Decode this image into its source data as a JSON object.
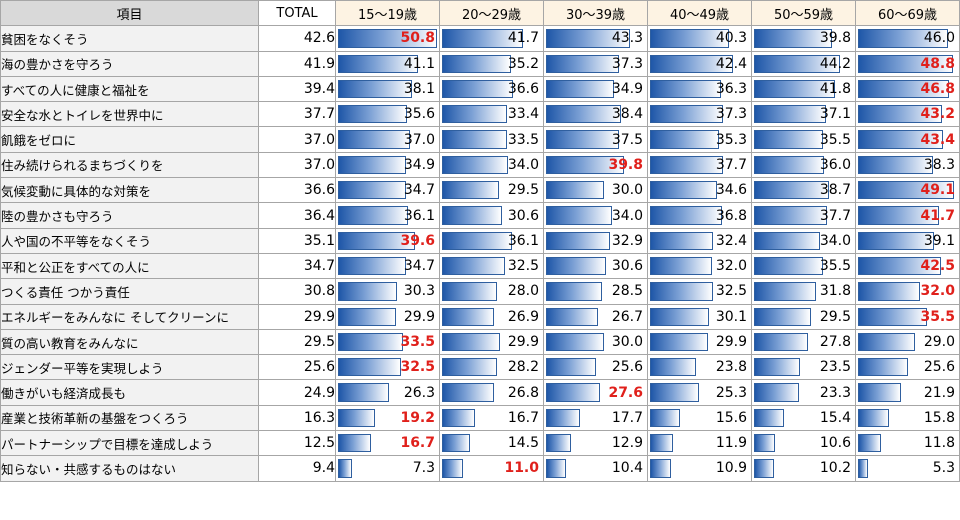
{
  "chart_data": {
    "type": "table",
    "columns": [
      "項目",
      "TOTAL",
      "15～19歳",
      "20～29歳",
      "30～39歳",
      "40～49歳",
      "50～59歳",
      "60～69歳"
    ],
    "bar_scale_max": 50.8,
    "bar_gradient": [
      "#1f57a8",
      "#7a9fd4",
      "#ffffff"
    ],
    "highlight_color": "#e0201b",
    "rows": [
      {
        "label": "貧困をなくそう",
        "total": "42.6",
        "values": [
          "50.8",
          "41.7",
          "43.3",
          "40.3",
          "39.8",
          "46.0"
        ],
        "highlight": [
          true,
          false,
          false,
          false,
          false,
          false
        ]
      },
      {
        "label": "海の豊かさを守ろう",
        "total": "41.9",
        "values": [
          "41.1",
          "35.2",
          "37.3",
          "42.4",
          "44.2",
          "48.8"
        ],
        "highlight": [
          false,
          false,
          false,
          false,
          false,
          true
        ]
      },
      {
        "label": "すべての人に健康と福祉を",
        "total": "39.4",
        "values": [
          "38.1",
          "36.6",
          "34.9",
          "36.3",
          "41.8",
          "46.8"
        ],
        "highlight": [
          false,
          false,
          false,
          false,
          false,
          true
        ]
      },
      {
        "label": "安全な水とトイレを世界中に",
        "total": "37.7",
        "values": [
          "35.6",
          "33.4",
          "38.4",
          "37.3",
          "37.1",
          "43.2"
        ],
        "highlight": [
          false,
          false,
          false,
          false,
          false,
          true
        ]
      },
      {
        "label": "飢餓をゼロに",
        "total": "37.0",
        "values": [
          "37.0",
          "33.5",
          "37.5",
          "35.3",
          "35.5",
          "43.4"
        ],
        "highlight": [
          false,
          false,
          false,
          false,
          false,
          true
        ]
      },
      {
        "label": "住み続けられるまちづくりを",
        "total": "37.0",
        "values": [
          "34.9",
          "34.0",
          "39.8",
          "37.7",
          "36.0",
          "38.3"
        ],
        "highlight": [
          false,
          false,
          true,
          false,
          false,
          false
        ]
      },
      {
        "label": "気候変動に具体的な対策を",
        "total": "36.6",
        "values": [
          "34.7",
          "29.5",
          "30.0",
          "34.6",
          "38.7",
          "49.1"
        ],
        "highlight": [
          false,
          false,
          false,
          false,
          false,
          true
        ]
      },
      {
        "label": "陸の豊かさも守ろう",
        "total": "36.4",
        "values": [
          "36.1",
          "30.6",
          "34.0",
          "36.8",
          "37.7",
          "41.7"
        ],
        "highlight": [
          false,
          false,
          false,
          false,
          false,
          true
        ]
      },
      {
        "label": "人や国の不平等をなくそう",
        "total": "35.1",
        "values": [
          "39.6",
          "36.1",
          "32.9",
          "32.4",
          "34.0",
          "39.1"
        ],
        "highlight": [
          true,
          false,
          false,
          false,
          false,
          false
        ]
      },
      {
        "label": "平和と公正をすべての人に",
        "total": "34.7",
        "values": [
          "34.7",
          "32.5",
          "30.6",
          "32.0",
          "35.5",
          "42.5"
        ],
        "highlight": [
          false,
          false,
          false,
          false,
          false,
          true
        ]
      },
      {
        "label": "つくる責任 つかう責任",
        "total": "30.8",
        "values": [
          "30.3",
          "28.0",
          "28.5",
          "32.5",
          "31.8",
          "32.0"
        ],
        "highlight": [
          false,
          false,
          false,
          false,
          false,
          true
        ]
      },
      {
        "label": "エネルギーをみんなに そしてクリーンに",
        "total": "29.9",
        "values": [
          "29.9",
          "26.9",
          "26.7",
          "30.1",
          "29.5",
          "35.5"
        ],
        "highlight": [
          false,
          false,
          false,
          false,
          false,
          true
        ]
      },
      {
        "label": "質の高い教育をみんなに",
        "total": "29.5",
        "values": [
          "33.5",
          "29.9",
          "30.0",
          "29.9",
          "27.8",
          "29.0"
        ],
        "highlight": [
          true,
          false,
          false,
          false,
          false,
          false
        ]
      },
      {
        "label": "ジェンダー平等を実現しよう",
        "total": "25.6",
        "values": [
          "32.5",
          "28.2",
          "25.6",
          "23.8",
          "23.5",
          "25.6"
        ],
        "highlight": [
          true,
          false,
          false,
          false,
          false,
          false
        ]
      },
      {
        "label": "働きがいも経済成長も",
        "total": "24.9",
        "values": [
          "26.3",
          "26.8",
          "27.6",
          "25.3",
          "23.3",
          "21.9"
        ],
        "highlight": [
          false,
          false,
          true,
          false,
          false,
          false
        ]
      },
      {
        "label": "産業と技術革新の基盤をつくろう",
        "total": "16.3",
        "values": [
          "19.2",
          "16.7",
          "17.7",
          "15.6",
          "15.4",
          "15.8"
        ],
        "highlight": [
          true,
          false,
          false,
          false,
          false,
          false
        ]
      },
      {
        "label": "パートナーシップで目標を達成しよう",
        "total": "12.5",
        "values": [
          "16.7",
          "14.5",
          "12.9",
          "11.9",
          "10.6",
          "11.8"
        ],
        "highlight": [
          true,
          false,
          false,
          false,
          false,
          false
        ]
      },
      {
        "label": "知らない・共感するものはない",
        "total": "9.4",
        "values": [
          "7.3",
          "11.0",
          "10.4",
          "10.9",
          "10.2",
          "5.3"
        ],
        "highlight": [
          false,
          true,
          false,
          false,
          false,
          false
        ]
      }
    ]
  }
}
